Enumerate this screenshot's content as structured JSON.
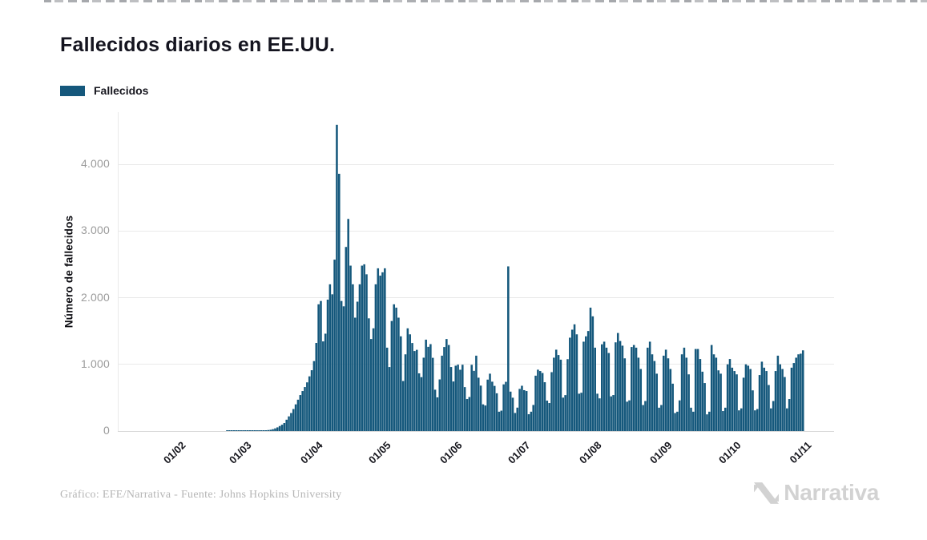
{
  "header": {
    "title": "Fallecidos diarios en EE.UU."
  },
  "legend": {
    "label": "Fallecidos",
    "swatch_color": "#15587c"
  },
  "footer": {
    "credit": "Gráfico: EFE/Narrativa - Fuente: Johns Hopkins University"
  },
  "branding": {
    "logo_text": "Narrativa",
    "logo_icon": "narrativa-n-mark",
    "logo_color": "#d2d2d2"
  },
  "colors": {
    "bar": "#15587c",
    "title": "#14141f",
    "y_tick_labels": "#9b9b9b",
    "x_tick_labels": "#15151c",
    "gridlines": "#e9e9e9",
    "footer_text": "#b5b5b5",
    "background": "#ffffff"
  },
  "chart_data": {
    "type": "bar",
    "title": "Fallecidos diarios en EE.UU.",
    "xlabel": "",
    "ylabel": "Número de fallecidos",
    "legend_position": "top-left",
    "grid": true,
    "x_start": "2020-01-22",
    "x_end": "2020-11-01",
    "frequency": "daily",
    "ylim": [
      0,
      4780
    ],
    "yticks": [
      {
        "value": 0,
        "label": "0"
      },
      {
        "value": 1000,
        "label": "1.000"
      },
      {
        "value": 2000,
        "label": "2.000"
      },
      {
        "value": 3000,
        "label": "3.000"
      },
      {
        "value": 4000,
        "label": "4.000"
      }
    ],
    "xticks": [
      {
        "day_index": 10,
        "label": "01/02"
      },
      {
        "day_index": 39,
        "label": "01/03"
      },
      {
        "day_index": 70,
        "label": "01/04"
      },
      {
        "day_index": 100,
        "label": "01/05"
      },
      {
        "day_index": 131,
        "label": "01/06"
      },
      {
        "day_index": 161,
        "label": "01/07"
      },
      {
        "day_index": 192,
        "label": "01/08"
      },
      {
        "day_index": 223,
        "label": "01/09"
      },
      {
        "day_index": 253,
        "label": "01/10"
      },
      {
        "day_index": 284,
        "label": "01/11"
      }
    ],
    "series": [
      {
        "name": "Fallecidos",
        "color": "#15587c",
        "values": [
          0,
          0,
          0,
          0,
          0,
          0,
          0,
          0,
          0,
          0,
          0,
          0,
          0,
          0,
          0,
          0,
          0,
          0,
          0,
          0,
          0,
          0,
          0,
          0,
          0,
          0,
          0,
          0,
          0,
          0,
          0,
          0,
          1,
          1,
          1,
          1,
          1,
          2,
          3,
          1,
          1,
          2,
          2,
          3,
          4,
          5,
          6,
          8,
          10,
          12,
          15,
          19,
          28,
          40,
          55,
          75,
          95,
          120,
          170,
          220,
          270,
          330,
          400,
          470,
          540,
          600,
          660,
          730,
          820,
          912,
          1049,
          1321,
          1900,
          1950,
          1344,
          1460,
          1970,
          2200,
          2050,
          2570,
          4591,
          3857,
          1950,
          1870,
          2760,
          3180,
          2480,
          2200,
          1700,
          1940,
          2200,
          2480,
          2500,
          2350,
          1690,
          1380,
          1540,
          2200,
          2440,
          2330,
          2380,
          2440,
          1250,
          960,
          1650,
          1900,
          1850,
          1700,
          1420,
          750,
          1150,
          1540,
          1450,
          1320,
          1200,
          1218,
          865,
          808,
          1100,
          1370,
          1263,
          1303,
          1098,
          620,
          505,
          774,
          1130,
          1260,
          1380,
          1290,
          960,
          743,
          980,
          995,
          919,
          994,
          659,
          480,
          510,
          993,
          903,
          1130,
          800,
          681,
          400,
          383,
          771,
          860,
          740,
          677,
          566,
          290,
          306,
          700,
          738,
          2469,
          591,
          500,
          271,
          351,
          632,
          679,
          613,
          600,
          252,
          290,
          391,
          830,
          920,
          900,
          870,
          732,
          456,
          420,
          883,
          1100,
          1220,
          1140,
          1070,
          501,
          539,
          1078,
          1400,
          1520,
          1600,
          1450,
          560,
          574,
          1340,
          1420,
          1500,
          1850,
          1720,
          1250,
          560,
          490,
          1300,
          1340,
          1250,
          1170,
          520,
          540,
          1330,
          1470,
          1350,
          1280,
          1090,
          440,
          460,
          1260,
          1290,
          1250,
          1100,
          930,
          390,
          450,
          1250,
          1340,
          1150,
          1050,
          860,
          350,
          390,
          1130,
          1220,
          1090,
          930,
          710,
          270,
          290,
          460,
          1150,
          1250,
          1100,
          850,
          350,
          290,
          1230,
          1230,
          1080,
          890,
          720,
          250,
          290,
          1290,
          1150,
          1100,
          910,
          860,
          300,
          350,
          1000,
          1080,
          950,
          900,
          850,
          310,
          340,
          800,
          1000,
          980,
          930,
          610,
          310,
          330,
          840,
          1040,
          950,
          900,
          690,
          340,
          450,
          900,
          1130,
          1000,
          930,
          810,
          340,
          480,
          950,
          1020,
          1100,
          1150,
          1160,
          1210
        ]
      }
    ]
  }
}
